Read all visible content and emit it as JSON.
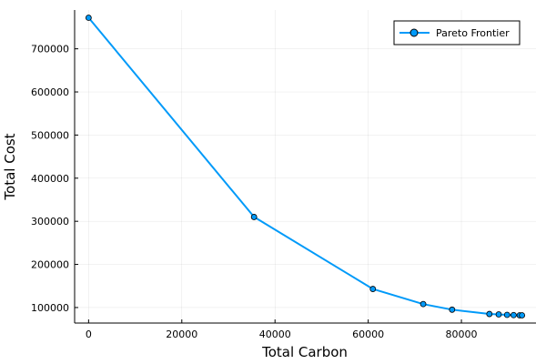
{
  "chart_data": {
    "type": "line",
    "xlabel": "Total Carbon",
    "ylabel": "Total Cost",
    "xlim": [
      -3000,
      96000
    ],
    "ylim": [
      64000,
      790000
    ],
    "xticks": [
      0,
      20000,
      40000,
      60000,
      80000
    ],
    "yticks": [
      100000,
      200000,
      300000,
      400000,
      500000,
      600000,
      700000
    ],
    "grid": true,
    "legend_position": "top-right",
    "series": [
      {
        "name": "Pareto Frontier",
        "color": "#009af9",
        "x": [
          0,
          35500,
          61000,
          71800,
          78000,
          86000,
          88000,
          89800,
          91200,
          92500,
          93000
        ],
        "y": [
          772000,
          310000,
          143000,
          108000,
          95000,
          85000,
          84000,
          83000,
          82500,
          82000,
          82000
        ]
      }
    ]
  }
}
